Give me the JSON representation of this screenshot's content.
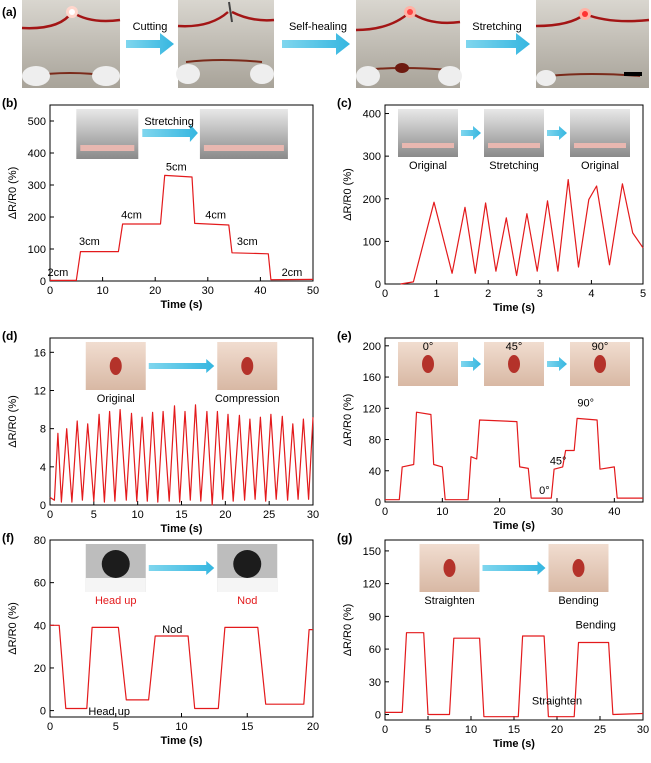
{
  "figure": {
    "row_a": {
      "label": "(a)",
      "steps": [
        "Cutting",
        "Self-healing",
        "Stretching"
      ]
    }
  },
  "chart_data": [
    {
      "id": "b",
      "panel_label": "(b)",
      "type": "line",
      "xlabel": "Time (s)",
      "ylabel": "ΔR/R0 (%)",
      "xlim": [
        0,
        50
      ],
      "ylim": [
        0,
        550
      ],
      "xticks": [
        0,
        10,
        20,
        30,
        40,
        50
      ],
      "yticks": [
        0,
        100,
        200,
        300,
        400,
        500
      ],
      "inset_labels": [
        "Stretching"
      ],
      "annotations": [
        {
          "text": "2cm",
          "x": 1.5,
          "y": 16
        },
        {
          "text": "3cm",
          "x": 7.5,
          "y": 112
        },
        {
          "text": "4cm",
          "x": 15.5,
          "y": 195
        },
        {
          "text": "5cm",
          "x": 24,
          "y": 345
        },
        {
          "text": "4cm",
          "x": 31.5,
          "y": 195
        },
        {
          "text": "3cm",
          "x": 37.5,
          "y": 112
        },
        {
          "text": "2cm",
          "x": 46,
          "y": 16
        }
      ],
      "series": [
        {
          "name": "ΔR/R0",
          "x": [
            0,
            5,
            5.8,
            13,
            13.8,
            21,
            21.8,
            27,
            27.5,
            34,
            34.6,
            41.5,
            42,
            50
          ],
          "y": [
            2,
            2,
            92,
            92,
            178,
            178,
            330,
            325,
            180,
            175,
            88,
            85,
            4,
            5
          ]
        }
      ]
    },
    {
      "id": "c",
      "panel_label": "(c)",
      "type": "line",
      "xlabel": "Time (s)",
      "ylabel": "ΔR/R0 (%)",
      "xlim": [
        0,
        5
      ],
      "ylim": [
        0,
        420
      ],
      "xticks": [
        0,
        1,
        2,
        3,
        4,
        5
      ],
      "yticks": [
        0,
        100,
        200,
        300,
        400
      ],
      "inset_labels": [
        "Original",
        "Stretching",
        "Original"
      ],
      "series": [
        {
          "name": "ΔR/R0",
          "x": [
            0.3,
            0.55,
            0.95,
            1.3,
            1.55,
            1.75,
            1.95,
            2.15,
            2.35,
            2.55,
            2.75,
            2.95,
            3.15,
            3.35,
            3.55,
            3.75,
            3.95,
            4.1,
            4.35,
            4.6,
            4.8,
            5
          ],
          "y": [
            0,
            5,
            192,
            25,
            180,
            25,
            190,
            30,
            155,
            20,
            165,
            30,
            195,
            30,
            245,
            40,
            198,
            230,
            45,
            235,
            120,
            85
          ]
        }
      ]
    },
    {
      "id": "d",
      "panel_label": "(d)",
      "type": "line",
      "xlabel": "Time (s)",
      "ylabel": "ΔR/R0 (%)",
      "xlim": [
        0,
        30
      ],
      "ylim": [
        0,
        17.5
      ],
      "xticks": [
        0,
        5,
        10,
        15,
        20,
        25,
        30
      ],
      "yticks": [
        0,
        4,
        8,
        12,
        16
      ],
      "inset_labels": [
        "Original",
        "Compression"
      ],
      "series": [
        {
          "name": "ΔR/R0",
          "x": [
            0,
            0.5,
            0.9,
            1.3,
            1.9,
            2.5,
            3.1,
            3.7,
            4.3,
            5.0,
            5.6,
            6.2,
            6.8,
            7.4,
            8.0,
            8.7,
            9.3,
            9.9,
            10.5,
            11.1,
            11.7,
            12.3,
            12.9,
            13.6,
            14.2,
            14.8,
            15.4,
            16.0,
            16.6,
            17.2,
            17.9,
            18.5,
            19.1,
            19.7,
            20.3,
            20.9,
            21.6,
            22.2,
            22.8,
            23.4,
            24.0,
            24.6,
            25.2,
            25.8,
            26.5,
            27.1,
            27.7,
            28.3,
            28.9,
            29.5,
            30
          ],
          "y": [
            0.8,
            0.5,
            7.5,
            0.3,
            8.0,
            0.3,
            8.8,
            0.5,
            8.5,
            0.4,
            9.5,
            0.3,
            9.8,
            0.4,
            10.0,
            0.5,
            9.6,
            0.4,
            9.2,
            0.4,
            9.7,
            0.3,
            9.8,
            0.4,
            10.4,
            0.3,
            9.8,
            0.5,
            10.5,
            0.4,
            9.8,
            0.0,
            9.8,
            0.6,
            9.5,
            0.4,
            9.4,
            0.5,
            9.0,
            0.6,
            9.2,
            0.4,
            9.5,
            0.6,
            9.3,
            0.5,
            8.5,
            0.6,
            9.0,
            0.6,
            9.2
          ]
        }
      ]
    },
    {
      "id": "e",
      "panel_label": "(e)",
      "type": "line",
      "xlabel": "Time (s)",
      "ylabel": "ΔR/R0 (%)",
      "xlim": [
        0,
        45
      ],
      "ylim": [
        0,
        210
      ],
      "xticks": [
        0,
        10,
        20,
        30,
        40
      ],
      "yticks": [
        0,
        40,
        80,
        120,
        160,
        200
      ],
      "inset_labels": [
        "0°",
        "45°",
        "90°"
      ],
      "annotations": [
        {
          "text": "0°",
          "x": 27.8,
          "y": 10
        },
        {
          "text": "45°",
          "x": 30.2,
          "y": 48
        },
        {
          "text": "90°",
          "x": 35,
          "y": 122
        }
      ],
      "series": [
        {
          "name": "ΔR/R0",
          "x": [
            0,
            2.5,
            3,
            5,
            5.5,
            8,
            8.5,
            10,
            10.5,
            14.5,
            15,
            16,
            16.5,
            23,
            23.5,
            25,
            25.5,
            29,
            29.5,
            31,
            31.5,
            33,
            33.5,
            37,
            37.5,
            40,
            40.5,
            45
          ],
          "y": [
            3,
            3,
            45,
            48,
            115,
            112,
            48,
            45,
            3,
            3,
            58,
            55,
            105,
            103,
            45,
            43,
            5,
            5,
            42,
            45,
            66,
            66,
            107,
            105,
            42,
            45,
            5,
            5
          ]
        }
      ]
    },
    {
      "id": "f",
      "panel_label": "(f)",
      "type": "line",
      "xlabel": "Time (s)",
      "ylabel": "ΔR/R0 (%)",
      "xlim": [
        0,
        20
      ],
      "ylim": [
        -3,
        80
      ],
      "xticks": [
        0,
        5,
        10,
        15,
        20
      ],
      "yticks": [
        0,
        20,
        40,
        60,
        80
      ],
      "inset_labels": [
        "Head up",
        "Nod"
      ],
      "annotations": [
        {
          "text": "Nod",
          "x": 9.3,
          "y": 36.5
        },
        {
          "text": "Head up",
          "x": 4.5,
          "y": -2
        }
      ],
      "series": [
        {
          "name": "ΔR/R0",
          "x": [
            0,
            0.7,
            1.2,
            2.8,
            3.2,
            5.2,
            5.8,
            7.5,
            8.0,
            10.5,
            11.0,
            12.8,
            13.3,
            15.8,
            16.4,
            19.3,
            19.7,
            20
          ],
          "y": [
            40,
            40,
            1,
            1,
            39,
            39,
            5,
            5,
            35,
            35,
            1,
            1,
            39,
            39,
            3,
            3,
            38,
            38
          ]
        }
      ]
    },
    {
      "id": "g",
      "panel_label": "(g)",
      "type": "line",
      "xlabel": "Time (s)",
      "ylabel": "ΔR/R0 (%)",
      "xlim": [
        0,
        30
      ],
      "ylim": [
        -5,
        160
      ],
      "xticks": [
        0,
        5,
        10,
        15,
        20,
        25,
        30
      ],
      "yticks": [
        0,
        30,
        60,
        90,
        120,
        150
      ],
      "inset_labels": [
        "Straighten",
        "Bending"
      ],
      "annotations": [
        {
          "text": "Bending",
          "x": 24.5,
          "y": 79
        },
        {
          "text": "Straighten",
          "x": 20,
          "y": 9
        }
      ],
      "series": [
        {
          "name": "ΔR/R0",
          "x": [
            0,
            2,
            2.5,
            4.5,
            5,
            7.5,
            8,
            11,
            11.5,
            15.5,
            16,
            18.5,
            19,
            22,
            22.5,
            26,
            26.5,
            30
          ],
          "y": [
            2,
            2,
            75,
            75,
            0,
            0,
            70,
            70,
            -2,
            -2,
            72,
            72,
            -2,
            -2,
            66,
            66,
            0,
            1
          ]
        }
      ]
    }
  ]
}
